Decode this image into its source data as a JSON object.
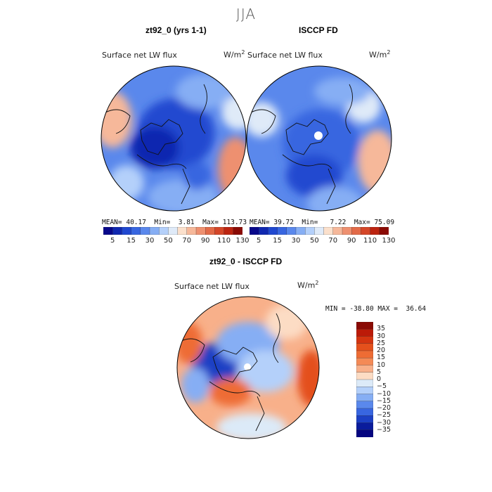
{
  "chart_data": {
    "type": "heatmap",
    "title": "JJA",
    "panels": [
      {
        "title": "zt92_0 (yrs 1-1)",
        "variable": "Surface net LW flux",
        "units": "W/m",
        "units_exp": "2",
        "stats": {
          "mean_label": "MEAN=",
          "mean": "40.17",
          "min_label": "Min=",
          "min": "3.81",
          "max_label": "Max=",
          "max": "113.73"
        },
        "colorbar_ticks": [
          "5",
          "15",
          "30",
          "50",
          "70",
          "90",
          "110",
          "130"
        ]
      },
      {
        "title": "ISCCP FD",
        "variable": "Surface net LW flux",
        "units": "W/m",
        "units_exp": "2",
        "stats": {
          "mean_label": "MEAN=",
          "mean": "39.72",
          "min_label": "Min=",
          "min": "7.22",
          "max_label": "Max=",
          "max": "75.09"
        },
        "colorbar_ticks": [
          "5",
          "15",
          "30",
          "50",
          "70",
          "90",
          "110",
          "130"
        ]
      },
      {
        "title": "zt92_0 - ISCCP FD",
        "variable": "Surface net LW flux",
        "units": "W/m",
        "units_exp": "2",
        "stats": {
          "min_label": "MIN =",
          "min": "-38.80",
          "max_label": "MAX =",
          "max": "36.64"
        },
        "colorbar_ticks": [
          "35",
          "30",
          "25",
          "20",
          "15",
          "10",
          "5",
          "0",
          "−5",
          "−10",
          "−15",
          "−20",
          "−25",
          "−30",
          "−35"
        ]
      }
    ],
    "abs_colors": [
      "#08088a",
      "#1028b0",
      "#2048d0",
      "#3866e0",
      "#5a88ec",
      "#86aef4",
      "#b4d0fa",
      "#dfeaf8",
      "#fbe0cc",
      "#f6b89a",
      "#ee9070",
      "#e26a48",
      "#d44628",
      "#bc2410",
      "#8a0a04"
    ],
    "diff_colors": [
      "#8a0a04",
      "#bc1a08",
      "#d43410",
      "#e4501c",
      "#ee6c34",
      "#f48a56",
      "#f8b08a",
      "#fcdcc4",
      "#dceaf8",
      "#b4d0fa",
      "#86aef4",
      "#5a88ec",
      "#3866e0",
      "#1c40c4",
      "#0a1c9c",
      "#050580"
    ]
  }
}
